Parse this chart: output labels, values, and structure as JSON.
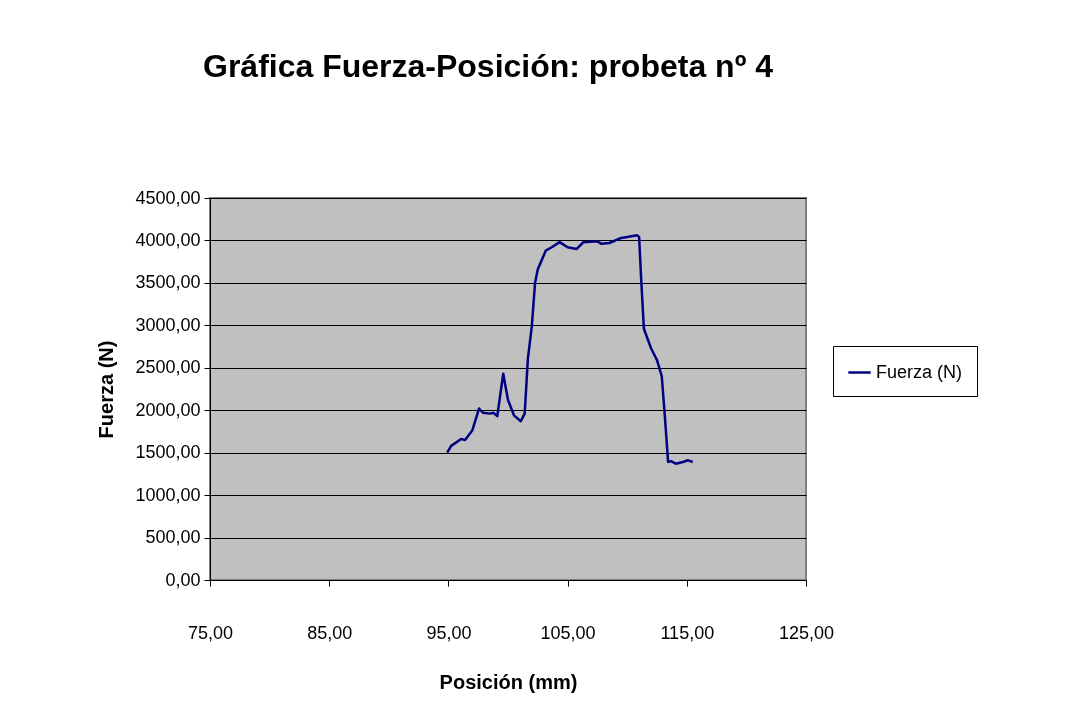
{
  "chart_data": {
    "type": "line",
    "title": "Gráfica Fuerza-Posición: probeta nº 4",
    "xlabel": "Posición (mm)",
    "ylabel": "Fuerza (N)",
    "xlim": [
      75,
      125
    ],
    "xticks": [
      {
        "value": 75,
        "label": "75,00"
      },
      {
        "value": 85,
        "label": "85,00"
      },
      {
        "value": 95,
        "label": "95,00"
      },
      {
        "value": 105,
        "label": "105,00"
      },
      {
        "value": 115,
        "label": "115,00"
      },
      {
        "value": 125,
        "label": "125,00"
      }
    ],
    "ylim": [
      0,
      4500
    ],
    "yticks": [
      {
        "value": 0,
        "label": "0,00"
      },
      {
        "value": 500,
        "label": "500,00"
      },
      {
        "value": 1000,
        "label": "1000,00"
      },
      {
        "value": 1500,
        "label": "1500,00"
      },
      {
        "value": 2000,
        "label": "2000,00"
      },
      {
        "value": 2500,
        "label": "2500,00"
      },
      {
        "value": 3000,
        "label": "3000,00"
      },
      {
        "value": 3500,
        "label": "3500,00"
      },
      {
        "value": 4000,
        "label": "4000,00"
      },
      {
        "value": 4500,
        "label": "4500,00"
      }
    ],
    "grid": "y",
    "legend": "right",
    "marker": "none",
    "line_style": "solid",
    "series": [
      {
        "name": "Fuerza (N)",
        "color": "#000080",
        "x": [
          94.9,
          95.23,
          96.07,
          96.4,
          97.0,
          97.57,
          97.9,
          98.5,
          98.77,
          99.1,
          99.6,
          100.0,
          100.5,
          101.07,
          101.4,
          101.67,
          102.0,
          102.27,
          102.5,
          103.17,
          103.67,
          104.33,
          105.0,
          105.77,
          106.33,
          107.5,
          107.83,
          108.5,
          109.5,
          110.0,
          110.83,
          111.0,
          111.17,
          111.4,
          112.0,
          112.5,
          112.9,
          113.17,
          113.43,
          113.67,
          114.07,
          114.67,
          115.1,
          115.5
        ],
        "values": [
          1500,
          1580,
          1660,
          1650,
          1760,
          2020,
          1970,
          1960,
          1970,
          1930,
          2430,
          2120,
          1940,
          1870,
          1960,
          2610,
          2990,
          3500,
          3660,
          3880,
          3920,
          3980,
          3920,
          3900,
          3980,
          3990,
          3960,
          3970,
          4030,
          4040,
          4060,
          4040,
          3550,
          2960,
          2730,
          2590,
          2400,
          1910,
          1390,
          1400,
          1370,
          1390,
          1410,
          1390
        ]
      }
    ]
  }
}
